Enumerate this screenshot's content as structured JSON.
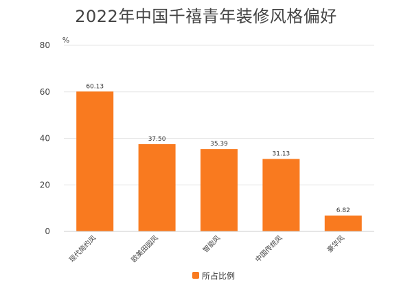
{
  "chart_data": {
    "type": "bar",
    "title": "2022年中国千禧青年装修风格偏好",
    "ylabel": "%",
    "xlabel": "",
    "categories": [
      "现代简约风",
      "欧美田园风",
      "智能风",
      "中国传统风",
      "豪华风"
    ],
    "series": [
      {
        "name": "所占比例",
        "values": [
          60.13,
          37.5,
          35.39,
          31.13,
          6.82
        ],
        "value_labels": [
          "60.13",
          "37.50",
          "35.39",
          "31.13",
          "6.82"
        ]
      }
    ],
    "ylim": [
      0,
      80
    ],
    "yticks": [
      0,
      20,
      40,
      60,
      80
    ],
    "ytick_labels": [
      "0",
      "20",
      "40",
      "60",
      "80"
    ],
    "grid": true,
    "legend_position": "bottom-center",
    "colors": {
      "bar": "#F97A1F",
      "grid": "#E6E6E6",
      "axis_text": "#444444"
    }
  }
}
